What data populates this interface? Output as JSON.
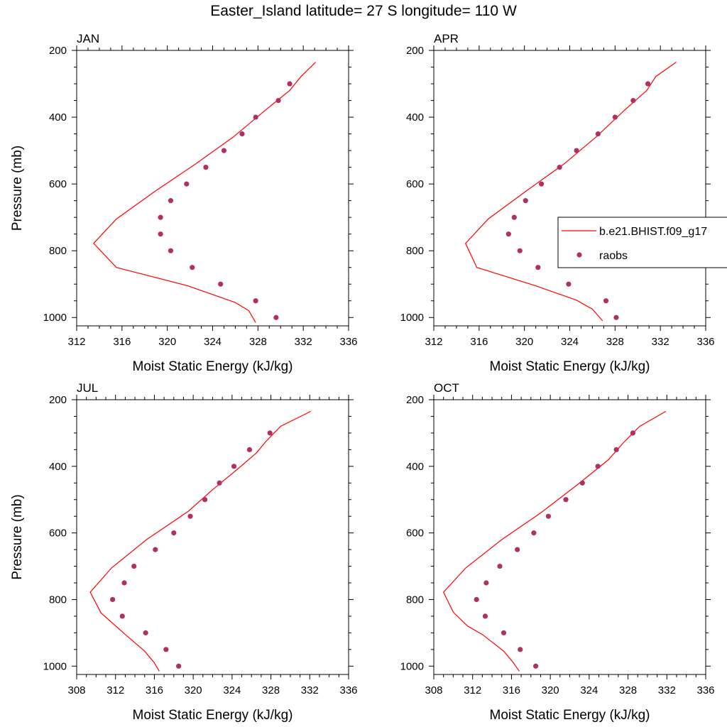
{
  "figure": {
    "title": "Easter_Island  latitude= 27 S longitude= 110 W"
  },
  "colors": {
    "model_line": "#ff0000",
    "raobs_marker": "#b03060",
    "axis": "#000000"
  },
  "legend": {
    "location": "right side of APR panel",
    "entries": [
      {
        "label": "b.e21.BHIST.f09_g17",
        "style": "line"
      },
      {
        "label": "raobs",
        "style": "marker"
      }
    ]
  },
  "chart_data": [
    {
      "type": "line",
      "panel": "JAN",
      "title": "JAN",
      "xlabel": "Moist Static Energy (kJ/kg)",
      "ylabel": "Pressure (mb)",
      "xlim": [
        312,
        336
      ],
      "ylim": [
        1025,
        200
      ],
      "y_inverted": true,
      "xticks": [
        312,
        316,
        320,
        324,
        328,
        332,
        336
      ],
      "yticks": [
        200,
        400,
        600,
        800,
        1000
      ],
      "grid": false,
      "series": [
        {
          "name": "b.e21.BHIST.f09_g17",
          "kind": "line",
          "points": [
            [
              327.8,
              1015
            ],
            [
              327.2,
              980
            ],
            [
              326.0,
              955
            ],
            [
              321.8,
              905
            ],
            [
              315.5,
              850
            ],
            [
              313.5,
              778
            ],
            [
              315.5,
              705
            ],
            [
              319.0,
              620
            ],
            [
              322.5,
              540
            ],
            [
              325.8,
              460
            ],
            [
              328.8,
              375
            ],
            [
              330.8,
              320
            ],
            [
              331.8,
              278
            ],
            [
              333.1,
              235
            ]
          ]
        },
        {
          "name": "raobs",
          "kind": "scatter",
          "points": [
            [
              329.6,
              1000
            ],
            [
              327.8,
              950
            ],
            [
              324.7,
              900
            ],
            [
              322.2,
              850
            ],
            [
              320.3,
              800
            ],
            [
              319.4,
              750
            ],
            [
              319.4,
              700
            ],
            [
              320.3,
              650
            ],
            [
              321.7,
              600
            ],
            [
              323.4,
              550
            ],
            [
              325.0,
              500
            ],
            [
              326.6,
              450
            ],
            [
              327.8,
              400
            ],
            [
              329.8,
              350
            ],
            [
              330.8,
              300
            ]
          ]
        }
      ]
    },
    {
      "type": "line",
      "panel": "APR",
      "title": "APR",
      "xlabel": "Moist Static Energy (kJ/kg)",
      "ylabel": "",
      "xlim": [
        312,
        336
      ],
      "ylim": [
        1025,
        200
      ],
      "y_inverted": true,
      "xticks": [
        312,
        316,
        320,
        324,
        328,
        332,
        336
      ],
      "yticks": [
        200,
        400,
        600,
        800,
        1000
      ],
      "grid": false,
      "series": [
        {
          "name": "b.e21.BHIST.f09_g17",
          "kind": "line",
          "points": [
            [
              326.9,
              1010
            ],
            [
              326.0,
              975
            ],
            [
              324.6,
              948
            ],
            [
              321.0,
              905
            ],
            [
              315.8,
              850
            ],
            [
              314.8,
              778
            ],
            [
              316.8,
              705
            ],
            [
              320.2,
              620
            ],
            [
              323.5,
              540
            ],
            [
              326.3,
              460
            ],
            [
              328.8,
              380
            ],
            [
              330.8,
              320
            ],
            [
              331.6,
              278
            ],
            [
              333.4,
              235
            ]
          ]
        },
        {
          "name": "raobs",
          "kind": "scatter",
          "points": [
            [
              328.1,
              1000
            ],
            [
              327.2,
              950
            ],
            [
              323.9,
              900
            ],
            [
              321.2,
              850
            ],
            [
              319.6,
              800
            ],
            [
              318.6,
              750
            ],
            [
              319.1,
              700
            ],
            [
              320.1,
              650
            ],
            [
              321.5,
              600
            ],
            [
              323.1,
              550
            ],
            [
              324.6,
              500
            ],
            [
              326.5,
              450
            ],
            [
              328.0,
              400
            ],
            [
              329.6,
              350
            ],
            [
              330.9,
              300
            ]
          ]
        }
      ]
    },
    {
      "type": "line",
      "panel": "JUL",
      "title": "JUL",
      "xlabel": "Moist Static Energy (kJ/kg)",
      "ylabel": "Pressure (mb)",
      "xlim": [
        308,
        336
      ],
      "ylim": [
        1025,
        200
      ],
      "y_inverted": true,
      "xticks": [
        308,
        312,
        316,
        320,
        324,
        328,
        332,
        336
      ],
      "yticks": [
        200,
        400,
        600,
        800,
        1000
      ],
      "grid": false,
      "series": [
        {
          "name": "b.e21.BHIST.f09_g17",
          "kind": "line",
          "points": [
            [
              316.5,
              1015
            ],
            [
              316.0,
              990
            ],
            [
              315.0,
              955
            ],
            [
              313.0,
              905
            ],
            [
              310.5,
              840
            ],
            [
              309.4,
              778
            ],
            [
              311.6,
              705
            ],
            [
              315.2,
              620
            ],
            [
              319.5,
              535
            ],
            [
              322.0,
              470
            ],
            [
              324.5,
              410
            ],
            [
              326.5,
              360
            ],
            [
              327.5,
              325
            ],
            [
              329.0,
              280
            ],
            [
              332.1,
              235
            ]
          ]
        },
        {
          "name": "raobs",
          "kind": "scatter",
          "points": [
            [
              318.5,
              1000
            ],
            [
              317.2,
              950
            ],
            [
              315.1,
              900
            ],
            [
              312.7,
              850
            ],
            [
              311.7,
              800
            ],
            [
              312.9,
              750
            ],
            [
              313.9,
              700
            ],
            [
              316.1,
              650
            ],
            [
              318.0,
              600
            ],
            [
              319.7,
              550
            ],
            [
              321.2,
              500
            ],
            [
              322.7,
              450
            ],
            [
              324.2,
              400
            ],
            [
              325.8,
              350
            ],
            [
              327.9,
              300
            ]
          ]
        }
      ]
    },
    {
      "type": "line",
      "panel": "OCT",
      "title": "OCT",
      "xlabel": "Moist Static Energy (kJ/kg)",
      "ylabel": "",
      "xlim": [
        308,
        336
      ],
      "ylim": [
        1025,
        200
      ],
      "y_inverted": true,
      "xticks": [
        308,
        312,
        316,
        320,
        324,
        328,
        332,
        336
      ],
      "yticks": [
        200,
        400,
        600,
        800,
        1000
      ],
      "grid": false,
      "series": [
        {
          "name": "b.e21.BHIST.f09_g17",
          "kind": "line",
          "points": [
            [
              316.8,
              1015
            ],
            [
              316.2,
              990
            ],
            [
              315.2,
              955
            ],
            [
              313.0,
              905
            ],
            [
              311.5,
              880
            ],
            [
              310.0,
              838
            ],
            [
              309.0,
              778
            ],
            [
              311.3,
              705
            ],
            [
              315.0,
              620
            ],
            [
              319.0,
              540
            ],
            [
              322.8,
              455
            ],
            [
              326.0,
              380
            ],
            [
              327.5,
              330
            ],
            [
              329.2,
              280
            ],
            [
              331.9,
              235
            ]
          ]
        },
        {
          "name": "raobs",
          "kind": "scatter",
          "points": [
            [
              318.5,
              1000
            ],
            [
              316.9,
              950
            ],
            [
              315.2,
              900
            ],
            [
              313.3,
              850
            ],
            [
              312.4,
              800
            ],
            [
              313.4,
              750
            ],
            [
              314.8,
              700
            ],
            [
              316.6,
              650
            ],
            [
              318.3,
              600
            ],
            [
              319.8,
              550
            ],
            [
              321.6,
              500
            ],
            [
              323.3,
              450
            ],
            [
              324.9,
              400
            ],
            [
              326.8,
              350
            ],
            [
              328.5,
              300
            ]
          ]
        }
      ]
    }
  ]
}
